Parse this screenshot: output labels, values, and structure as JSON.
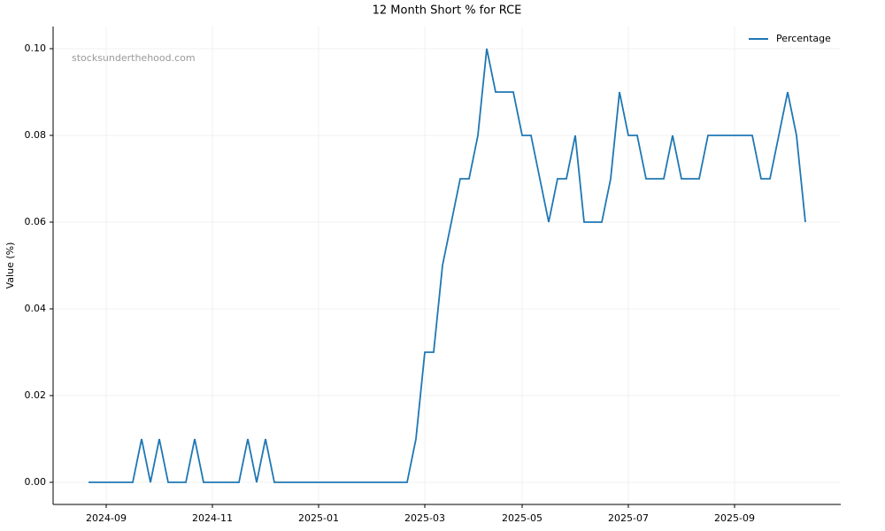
{
  "chart_data": {
    "type": "line",
    "title": "12 Month Short % for RCE",
    "ylabel": "Value (%)",
    "watermark": "stocksunderthehood.com",
    "categories": [
      null,
      null,
      "2024-09",
      null,
      null,
      null,
      null,
      null,
      null,
      null,
      null,
      null,
      null,
      null,
      "2024-11",
      null,
      null,
      null,
      null,
      null,
      null,
      null,
      null,
      null,
      null,
      null,
      "2025-01",
      null,
      null,
      null,
      null,
      null,
      null,
      null,
      null,
      null,
      null,
      null,
      "2025-03",
      null,
      null,
      null,
      null,
      null,
      null,
      null,
      null,
      null,
      null,
      "2025-05",
      null,
      null,
      null,
      null,
      null,
      null,
      null,
      null,
      null,
      null,
      null,
      "2025-07",
      null,
      null,
      null,
      null,
      null,
      null,
      null,
      null,
      null,
      null,
      null,
      "2025-09",
      null,
      null,
      null,
      null,
      null,
      null,
      null,
      null
    ],
    "series": [
      {
        "name": "Percentage",
        "color": "#1f77b4",
        "values": [
          0,
          0,
          0,
          0,
          0,
          0,
          0.01,
          0,
          0.01,
          0,
          0,
          0,
          0.01,
          0,
          0,
          0,
          0,
          0,
          0.01,
          0,
          0.01,
          0,
          0,
          0,
          0,
          0,
          0,
          0,
          0,
          0,
          0,
          0,
          0,
          0,
          0,
          0,
          0,
          0.01,
          0.03,
          0.03,
          0.05,
          0.06,
          0.07,
          0.07,
          0.08,
          0.1,
          0.09,
          0.09,
          0.09,
          0.08,
          0.08,
          0.07,
          0.06,
          0.07,
          0.07,
          0.08,
          0.06,
          0.06,
          0.06,
          0.07,
          0.09,
          0.08,
          0.08,
          0.07,
          0.07,
          0.07,
          0.08,
          0.07,
          0.07,
          0.07,
          0.08,
          0.08,
          0.08,
          0.08,
          0.08,
          0.08,
          0.07,
          0.07,
          0.08,
          0.09,
          0.08,
          0.06
        ]
      }
    ],
    "ylim": [
      -0.0051,
      0.1051
    ],
    "yticks": [
      {
        "value": 0,
        "label": "0.00"
      },
      {
        "value": 0.02,
        "label": "0.02"
      },
      {
        "value": 0.04,
        "label": "0.04"
      },
      {
        "value": 0.06,
        "label": "0.06"
      },
      {
        "value": 0.08,
        "label": "0.08"
      },
      {
        "value": 0.1,
        "label": "0.10"
      }
    ],
    "grid": true,
    "legend": "upper right"
  }
}
